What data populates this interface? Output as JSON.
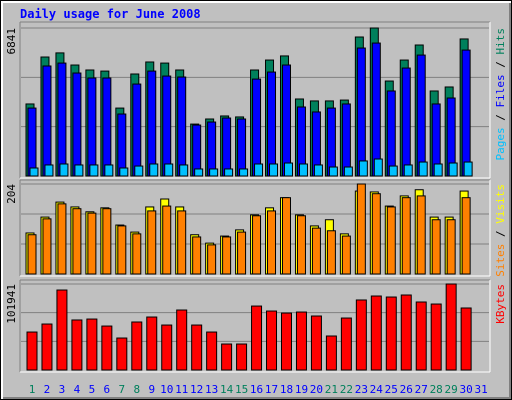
{
  "chart_data": [
    {
      "type": "bar",
      "title": "Daily usage for June 2008",
      "categories": [
        "1",
        "2",
        "3",
        "4",
        "5",
        "6",
        "7",
        "8",
        "9",
        "10",
        "11",
        "12",
        "13",
        "14",
        "15",
        "16",
        "17",
        "18",
        "19",
        "20",
        "21",
        "22",
        "23",
        "24",
        "25",
        "26",
        "27",
        "28",
        "29",
        "30",
        "31"
      ],
      "ylim": [
        0,
        6841
      ],
      "yticks": [
        6841
      ],
      "legend_separator": " / ",
      "series": [
        {
          "name": "Hits",
          "color": "#00805c",
          "values": [
            3330,
            5500,
            5690,
            5130,
            4900,
            4850,
            3140,
            4715,
            5270,
            5220,
            4900,
            2400,
            2635,
            2775,
            2730,
            4900,
            5360,
            5550,
            3560,
            3470,
            3470,
            3510,
            6425,
            6841,
            4390,
            5360,
            6055,
            3930,
            4115,
            6335,
            null
          ]
        },
        {
          "name": "Files",
          "color": "#0000ff",
          "values": [
            3140,
            5085,
            5220,
            4760,
            4530,
            4530,
            2865,
            4250,
            4850,
            4620,
            4575,
            2355,
            2495,
            2680,
            2635,
            4480,
            4805,
            5130,
            3190,
            2960,
            3140,
            3330,
            5915,
            6145,
            3930,
            4990,
            5590,
            3330,
            3605,
            5820,
            null
          ]
        },
        {
          "name": "Pages",
          "color": "#00c0ff",
          "values": [
            370,
            510,
            555,
            510,
            510,
            510,
            370,
            460,
            555,
            555,
            510,
            325,
            325,
            325,
            325,
            555,
            555,
            600,
            555,
            510,
            415,
            415,
            695,
            785,
            460,
            510,
            645,
            555,
            600,
            645,
            null
          ]
        }
      ]
    },
    {
      "type": "bar",
      "categories": [
        "1",
        "2",
        "3",
        "4",
        "5",
        "6",
        "7",
        "8",
        "9",
        "10",
        "11",
        "12",
        "13",
        "14",
        "15",
        "16",
        "17",
        "18",
        "19",
        "20",
        "21",
        "22",
        "23",
        "24",
        "25",
        "26",
        "27",
        "28",
        "29",
        "30",
        "31"
      ],
      "ylim": [
        0,
        204
      ],
      "yticks": [
        204
      ],
      "legend_separator": " / ",
      "series": [
        {
          "name": "Visits",
          "color": "#ffff00",
          "values": [
            93,
            129,
            163,
            152,
            141,
            150,
            111,
            95,
            152,
            170,
            152,
            89,
            70,
            86,
            100,
            134,
            150,
            173,
            134,
            109,
            123,
            91,
            188,
            186,
            154,
            177,
            191,
            129,
            129,
            188,
            null
          ]
        },
        {
          "name": "Sites",
          "color": "#ff8000",
          "values": [
            89,
            125,
            159,
            148,
            138,
            148,
            109,
            91,
            143,
            154,
            143,
            84,
            66,
            84,
            95,
            132,
            143,
            173,
            132,
            104,
            98,
            86,
            204,
            182,
            152,
            173,
            177,
            123,
            123,
            173,
            null
          ]
        }
      ]
    },
    {
      "type": "bar",
      "categories": [
        "1",
        "2",
        "3",
        "4",
        "5",
        "6",
        "7",
        "8",
        "9",
        "10",
        "11",
        "12",
        "13",
        "14",
        "15",
        "16",
        "17",
        "18",
        "19",
        "20",
        "21",
        "22",
        "23",
        "24",
        "25",
        "26",
        "27",
        "28",
        "29",
        "30",
        "31"
      ],
      "tick_label_colors": [
        "#00805c",
        "#0000ff",
        "#0000ff",
        "#0000ff",
        "#0000ff",
        "#0000ff",
        "#00805c",
        "#00805c",
        "#0000ff",
        "#0000ff",
        "#0000ff",
        "#0000ff",
        "#0000ff",
        "#00805c",
        "#00805c",
        "#0000ff",
        "#0000ff",
        "#0000ff",
        "#0000ff",
        "#0000ff",
        "#00805c",
        "#00805c",
        "#0000ff",
        "#0000ff",
        "#0000ff",
        "#0000ff",
        "#0000ff",
        "#00805c",
        "#00805c",
        "#0000ff",
        "#0000ff"
      ],
      "ylim": [
        0,
        101941
      ],
      "yticks": [
        101941
      ],
      "legend_separator": " / ",
      "series": [
        {
          "name": "KBytes",
          "color": "#ff0000",
          "values": [
            45000,
            54500,
            94800,
            59300,
            60400,
            52100,
            37900,
            56900,
            62800,
            53300,
            71100,
            53300,
            45000,
            30800,
            30800,
            75800,
            69900,
            67500,
            68700,
            64000,
            40300,
            61600,
            83000,
            87700,
            86500,
            88900,
            80600,
            78200,
            101941,
            73500,
            null
          ]
        }
      ]
    }
  ]
}
